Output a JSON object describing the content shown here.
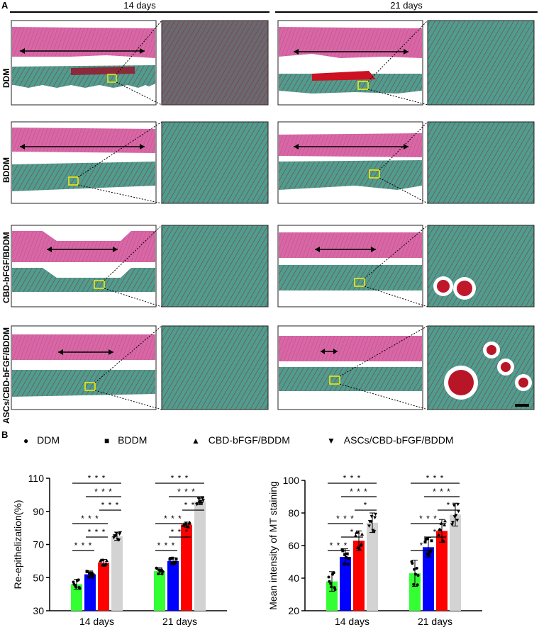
{
  "figure": {
    "panel_a_letter": "A",
    "panel_b_letter": "B",
    "columns": [
      "14 days",
      "21 days"
    ],
    "rows": [
      "DDM",
      "BDDM",
      "CBD-bFGF/BDDM",
      "ASCs/CBD-bFGF/BDDM"
    ]
  },
  "legend": [
    {
      "symbol": "●",
      "label": "DDM"
    },
    {
      "symbol": "■",
      "label": "BDDM"
    },
    {
      "symbol": "▲",
      "label": "CBD-bFGF/BDDM"
    },
    {
      "symbol": "▼",
      "label": "ASCs/CBD-bFGF/BDDM"
    }
  ],
  "colors": {
    "DDM": "#33ff33",
    "BDDM": "#0000ff",
    "CBD-bFGF/BDDM": "#ff0000",
    "ASCs/CBD-bFGF/BDDM": "#d3d3d3"
  },
  "chart_data": [
    {
      "type": "bar",
      "ylabel": "Re-epithelization(%)",
      "ylim": [
        30,
        110
      ],
      "yticks": [
        30,
        50,
        70,
        90,
        110
      ],
      "categories": [
        "14 days",
        "21 days"
      ],
      "series": [
        {
          "name": "DDM",
          "values": [
            46,
            54
          ],
          "errors": [
            3,
            2
          ]
        },
        {
          "name": "BDDM",
          "values": [
            52,
            60
          ],
          "errors": [
            2,
            2
          ]
        },
        {
          "name": "CBD-bFGF/BDDM",
          "values": [
            59,
            82
          ],
          "errors": [
            2,
            1.5
          ]
        },
        {
          "name": "ASCs/CBD-bFGF/BDDM",
          "values": [
            75,
            96
          ],
          "errors": [
            2.5,
            2
          ]
        }
      ],
      "significance": [
        {
          "group": 0,
          "a": 0,
          "b": 1,
          "label": "***"
        },
        {
          "group": 0,
          "a": 1,
          "b": 2,
          "label": "***"
        },
        {
          "group": 0,
          "a": 0,
          "b": 2,
          "label": "***"
        },
        {
          "group": 0,
          "a": 2,
          "b": 3,
          "label": "***"
        },
        {
          "group": 0,
          "a": 1,
          "b": 3,
          "label": "***"
        },
        {
          "group": 0,
          "a": 0,
          "b": 3,
          "label": "***"
        },
        {
          "group": 1,
          "a": 0,
          "b": 1,
          "label": "***"
        },
        {
          "group": 1,
          "a": 1,
          "b": 2,
          "label": "***"
        },
        {
          "group": 1,
          "a": 0,
          "b": 2,
          "label": "***"
        },
        {
          "group": 1,
          "a": 2,
          "b": 3,
          "label": "***"
        },
        {
          "group": 1,
          "a": 1,
          "b": 3,
          "label": "***"
        },
        {
          "group": 1,
          "a": 0,
          "b": 3,
          "label": "***"
        }
      ]
    },
    {
      "type": "bar",
      "ylabel": "Mean intensity of MT staining",
      "ylim": [
        20,
        100
      ],
      "yticks": [
        20,
        40,
        60,
        80,
        100
      ],
      "categories": [
        "14 days",
        "21 days"
      ],
      "series": [
        {
          "name": "DDM",
          "values": [
            38,
            43
          ],
          "errors": [
            6,
            8
          ]
        },
        {
          "name": "BDDM",
          "values": [
            53,
            59
          ],
          "errors": [
            5,
            6
          ]
        },
        {
          "name": "CBD-bFGF/BDDM",
          "values": [
            63,
            69
          ],
          "errors": [
            6,
            7
          ]
        },
        {
          "name": "ASCs/CBD-bFGF/BDDM",
          "values": [
            74,
            79
          ],
          "errors": [
            6,
            7
          ]
        }
      ],
      "significance": [
        {
          "group": 0,
          "a": 0,
          "b": 1,
          "label": "***"
        },
        {
          "group": 0,
          "a": 1,
          "b": 2,
          "label": "*"
        },
        {
          "group": 0,
          "a": 0,
          "b": 2,
          "label": "***"
        },
        {
          "group": 0,
          "a": 2,
          "b": 3,
          "label": "*"
        },
        {
          "group": 0,
          "a": 1,
          "b": 3,
          "label": "***"
        },
        {
          "group": 0,
          "a": 0,
          "b": 3,
          "label": "***"
        },
        {
          "group": 1,
          "a": 0,
          "b": 1,
          "label": "*"
        },
        {
          "group": 1,
          "a": 1,
          "b": 2,
          "label": "*"
        },
        {
          "group": 1,
          "a": 0,
          "b": 2,
          "label": "***"
        },
        {
          "group": 1,
          "a": 2,
          "b": 3,
          "label": "*"
        },
        {
          "group": 1,
          "a": 1,
          "b": 3,
          "label": "***"
        },
        {
          "group": 1,
          "a": 0,
          "b": 3,
          "label": "***"
        }
      ]
    }
  ]
}
